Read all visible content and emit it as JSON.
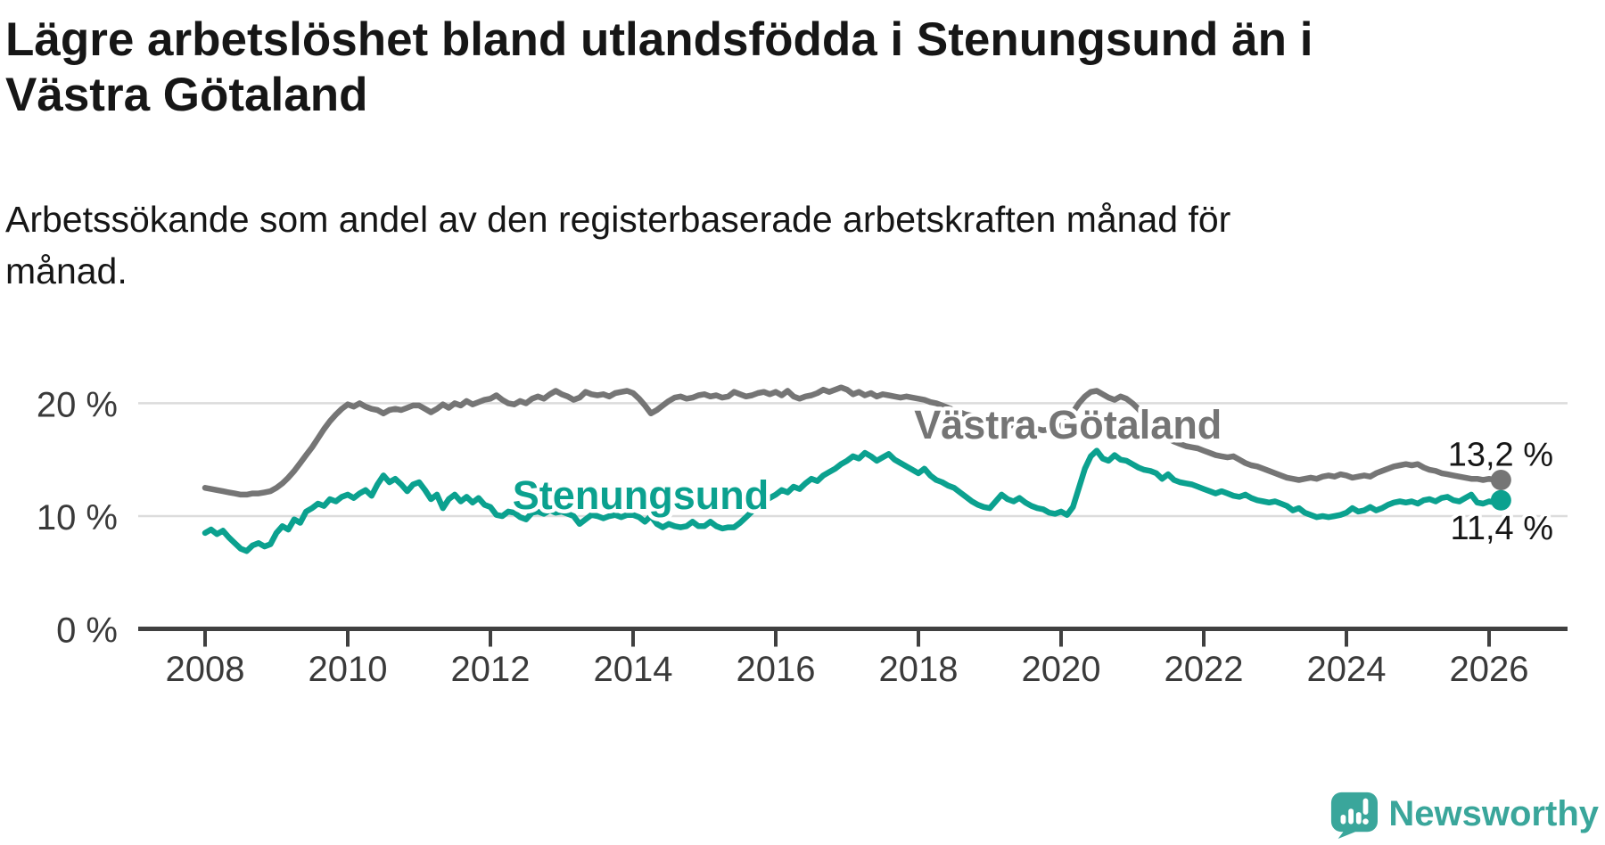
{
  "header": {
    "title": "Lägre arbetslöshet bland utlandsfödda i Stenungsund än i Västra Götaland",
    "subtitle": "Arbetssökande som andel av den registerbaserade arbetskraften månad för månad."
  },
  "branding": {
    "name": "Newsworthy",
    "icon": "speech-bubble-chart-icon",
    "color": "#3aa69b"
  },
  "colors": {
    "background": "#ffffff",
    "text": "#161616",
    "axis": "#404040",
    "axis_labels": "#3a3a3a",
    "grid": "#dcdcdc",
    "stenungsund": "#0ba18f",
    "vastra_gotaland": "#757575"
  },
  "chart_data": {
    "type": "line",
    "title": "Lägre arbetslöshet bland utlandsfödda i Stenungsund än i Västra Götaland",
    "xlabel": "",
    "ylabel": "",
    "x_start_year": 2008,
    "x_step_months": 1,
    "x_ticks": [
      2008,
      2010,
      2012,
      2014,
      2016,
      2018,
      2020,
      2022,
      2024,
      2026
    ],
    "y_ticks": [
      {
        "value": 20,
        "label": "20 %"
      },
      {
        "value": 10,
        "label": "10 %"
      },
      {
        "value": 0,
        "label": "0 %"
      }
    ],
    "ylim": [
      0,
      23
    ],
    "grid": "horizontal",
    "legend_position": "inline-labels",
    "series": [
      {
        "name": "Västra Götaland",
        "color": "#757575",
        "inline_label": {
          "year": 2017.94,
          "value": 16.87,
          "anchor": "start"
        },
        "end_value_label": "13,2 %",
        "end_label_position": "above",
        "values": [
          12.5,
          12.4,
          12.3,
          12.2,
          12.1,
          12.0,
          11.9,
          11.9,
          12.0,
          12.0,
          12.1,
          12.2,
          12.5,
          12.9,
          13.4,
          14.0,
          14.7,
          15.4,
          16.1,
          16.9,
          17.7,
          18.4,
          19.0,
          19.5,
          19.9,
          19.7,
          20.0,
          19.7,
          19.5,
          19.4,
          19.1,
          19.4,
          19.5,
          19.4,
          19.6,
          19.8,
          19.8,
          19.5,
          19.2,
          19.5,
          19.9,
          19.6,
          20.0,
          19.8,
          20.2,
          19.9,
          20.1,
          20.3,
          20.4,
          20.7,
          20.3,
          20.0,
          19.9,
          20.2,
          20.0,
          20.4,
          20.6,
          20.4,
          20.8,
          21.1,
          20.8,
          20.6,
          20.3,
          20.5,
          21.0,
          20.8,
          20.7,
          20.8,
          20.6,
          20.9,
          21.0,
          21.1,
          20.9,
          20.4,
          19.8,
          19.1,
          19.4,
          19.8,
          20.2,
          20.5,
          20.6,
          20.4,
          20.5,
          20.7,
          20.8,
          20.6,
          20.7,
          20.5,
          20.6,
          21.0,
          20.8,
          20.6,
          20.7,
          20.9,
          21.0,
          20.8,
          21.0,
          20.7,
          21.1,
          20.6,
          20.4,
          20.6,
          20.7,
          20.9,
          21.2,
          21.0,
          21.2,
          21.4,
          21.2,
          20.8,
          21.0,
          20.7,
          20.9,
          20.6,
          20.8,
          20.7,
          20.6,
          20.5,
          20.6,
          20.5,
          20.4,
          20.3,
          20.1,
          20.0,
          19.8,
          19.6,
          19.4,
          19.2,
          19.0,
          18.9,
          18.8,
          18.7,
          18.6,
          18.4,
          18.3,
          18.2,
          18.0,
          17.9,
          17.8,
          17.7,
          17.7,
          17.6,
          17.7,
          17.8,
          18.0,
          18.4,
          19.2,
          20.0,
          20.6,
          21.0,
          21.1,
          20.8,
          20.5,
          20.3,
          20.6,
          20.4,
          20.0,
          19.5,
          18.9,
          18.3,
          17.8,
          17.3,
          16.9,
          16.6,
          16.4,
          16.2,
          16.1,
          16.0,
          15.8,
          15.6,
          15.4,
          15.3,
          15.2,
          15.3,
          15.0,
          14.7,
          14.5,
          14.4,
          14.2,
          14.0,
          13.8,
          13.6,
          13.4,
          13.3,
          13.2,
          13.3,
          13.4,
          13.3,
          13.5,
          13.6,
          13.5,
          13.7,
          13.6,
          13.4,
          13.5,
          13.6,
          13.5,
          13.8,
          14.0,
          14.2,
          14.4,
          14.5,
          14.6,
          14.5,
          14.6,
          14.3,
          14.1,
          14.0,
          13.8,
          13.7,
          13.6,
          13.5,
          13.4,
          13.3,
          13.3,
          13.2,
          13.3,
          13.2,
          13.2
        ]
      },
      {
        "name": "Stenungsund",
        "color": "#0ba18f",
        "inline_label": {
          "year": 2012.31,
          "value": 10.63,
          "anchor": "start"
        },
        "end_value_label": "11,4 %",
        "end_label_position": "below",
        "values": [
          8.5,
          8.8,
          8.4,
          8.7,
          8.1,
          7.6,
          7.1,
          6.9,
          7.4,
          7.6,
          7.3,
          7.5,
          8.5,
          9.1,
          8.8,
          9.7,
          9.4,
          10.4,
          10.7,
          11.1,
          10.9,
          11.5,
          11.3,
          11.7,
          11.9,
          11.6,
          12.0,
          12.3,
          11.8,
          12.8,
          13.6,
          13.0,
          13.3,
          12.8,
          12.2,
          12.8,
          13.0,
          12.3,
          11.5,
          11.9,
          10.7,
          11.5,
          11.9,
          11.3,
          11.7,
          11.2,
          11.6,
          11.0,
          10.8,
          10.1,
          10.0,
          10.4,
          10.3,
          9.9,
          9.7,
          10.3,
          10.4,
          10.2,
          10.5,
          10.3,
          10.4,
          10.2,
          10.0,
          9.3,
          9.7,
          10.1,
          10.0,
          9.8,
          10.0,
          10.1,
          9.9,
          10.1,
          10.1,
          9.9,
          9.5,
          10.0,
          9.3,
          9.0,
          9.3,
          9.1,
          9.0,
          9.1,
          9.5,
          9.1,
          9.1,
          9.5,
          9.1,
          8.9,
          9.0,
          9.0,
          9.4,
          9.9,
          10.4,
          10.9,
          11.3,
          11.6,
          11.9,
          12.3,
          12.1,
          12.6,
          12.4,
          12.9,
          13.3,
          13.1,
          13.6,
          13.9,
          14.2,
          14.6,
          14.9,
          15.3,
          15.1,
          15.6,
          15.3,
          14.9,
          15.2,
          15.5,
          15.0,
          14.7,
          14.4,
          14.1,
          13.8,
          14.2,
          13.6,
          13.2,
          13.0,
          12.7,
          12.5,
          12.1,
          11.7,
          11.3,
          11.0,
          10.8,
          10.7,
          11.3,
          11.9,
          11.5,
          11.3,
          11.6,
          11.2,
          10.9,
          10.7,
          10.6,
          10.3,
          10.2,
          10.4,
          10.1,
          10.8,
          12.5,
          14.2,
          15.3,
          15.8,
          15.1,
          14.9,
          15.4,
          15.0,
          14.9,
          14.6,
          14.3,
          14.1,
          14.0,
          13.8,
          13.3,
          13.7,
          13.2,
          13.0,
          12.9,
          12.8,
          12.6,
          12.4,
          12.2,
          12.0,
          12.2,
          12.0,
          11.8,
          11.7,
          11.9,
          11.6,
          11.4,
          11.3,
          11.2,
          11.3,
          11.1,
          10.9,
          10.5,
          10.7,
          10.3,
          10.1,
          9.9,
          10.0,
          9.9,
          10.0,
          10.1,
          10.3,
          10.7,
          10.4,
          10.5,
          10.8,
          10.5,
          10.7,
          11.0,
          11.2,
          11.3,
          11.2,
          11.3,
          11.1,
          11.4,
          11.5,
          11.3,
          11.6,
          11.7,
          11.4,
          11.3,
          11.6,
          11.9,
          11.2,
          11.1,
          11.3,
          11.2,
          11.4
        ]
      }
    ]
  }
}
